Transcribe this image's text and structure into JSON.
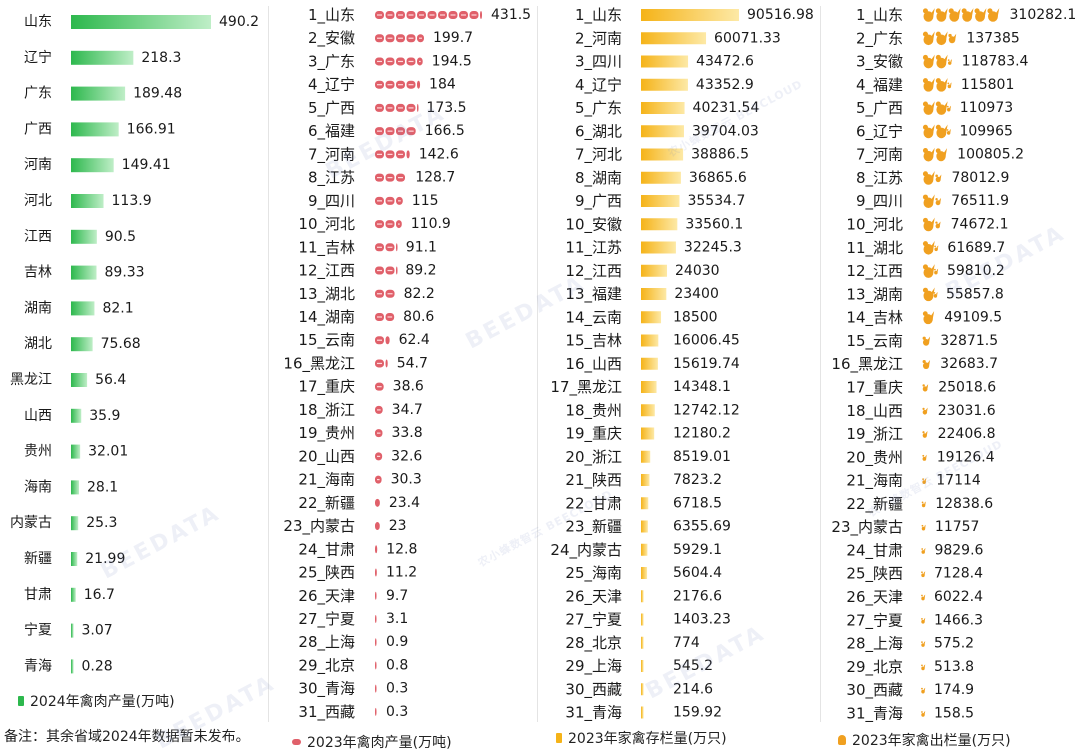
{
  "chart_data": [
    {
      "type": "bar",
      "orientation": "horizontal",
      "legend": "2024年禽肉产量(万吨)",
      "legend_position": "bottom-left",
      "color": "#2db84d",
      "categories": [
        "山东",
        "辽宁",
        "广东",
        "广西",
        "河南",
        "河北",
        "江西",
        "吉林",
        "湖南",
        "湖北",
        "黑龙江",
        "山西",
        "贵州",
        "海南",
        "内蒙古",
        "新疆",
        "甘肃",
        "宁夏",
        "青海"
      ],
      "values": [
        490.2,
        218.3,
        189.48,
        166.91,
        149.41,
        113.9,
        90.5,
        89.33,
        82.1,
        75.68,
        56.4,
        35.9,
        32.01,
        28.1,
        25.3,
        21.99,
        16.7,
        3.07,
        0.28
      ],
      "value_labels": [
        "490.2",
        "218.3",
        "189.48",
        "166.91",
        "149.41",
        "113.9",
        "90.5",
        "89.33",
        "82.1",
        "75.68",
        "56.4",
        "35.9",
        "32.01",
        "28.1",
        "25.3",
        "21.99",
        "16.7",
        "3.07",
        "0.28"
      ]
    },
    {
      "type": "bar",
      "orientation": "horizontal",
      "style": "pictograph-meat",
      "legend": "2023年禽肉产量(万吨)",
      "legend_position": "bottom",
      "color": "#e0606a",
      "categories": [
        "1_山东",
        "2_安徽",
        "3_广东",
        "4_辽宁",
        "5_广西",
        "6_福建",
        "7_河南",
        "8_江苏",
        "9_四川",
        "10_河北",
        "11_吉林",
        "12_江西",
        "13_湖北",
        "14_湖南",
        "15_云南",
        "16_黑龙江",
        "17_重庆",
        "18_浙江",
        "19_贵州",
        "20_山西",
        "21_海南",
        "22_新疆",
        "23_内蒙古",
        "24_甘肃",
        "25_陕西",
        "26_天津",
        "27_宁夏",
        "28_上海",
        "29_北京",
        "30_青海",
        "31_西藏"
      ],
      "values": [
        431.5,
        199.7,
        194.5,
        184,
        173.5,
        166.5,
        142.6,
        128.7,
        115,
        110.9,
        91.1,
        89.2,
        82.2,
        80.6,
        62.4,
        54.7,
        38.6,
        34.7,
        33.8,
        32.6,
        30.3,
        23.4,
        23,
        12.8,
        11.2,
        9.7,
        3.1,
        0.9,
        0.8,
        0.3,
        0.3
      ],
      "value_labels": [
        "431.5",
        "199.7",
        "194.5",
        "184",
        "173.5",
        "166.5",
        "142.6",
        "128.7",
        "115",
        "110.9",
        "91.1",
        "89.2",
        "82.2",
        "80.6",
        "62.4",
        "54.7",
        "38.6",
        "34.7",
        "33.8",
        "32.6",
        "30.3",
        "23.4",
        "23",
        "12.8",
        "11.2",
        "9.7",
        "3.1",
        "0.9",
        "0.8",
        "0.3",
        "0.3"
      ]
    },
    {
      "type": "bar",
      "orientation": "horizontal",
      "legend": "2023年家禽存栏量(万只)",
      "legend_position": "bottom",
      "color": "#f5b318",
      "categories": [
        "1_山东",
        "2_河南",
        "3_四川",
        "4_辽宁",
        "5_广东",
        "6_湖北",
        "7_河北",
        "8_湖南",
        "9_广西",
        "10_安徽",
        "11_江苏",
        "12_江西",
        "13_福建",
        "14_云南",
        "15_吉林",
        "16_山西",
        "17_黑龙江",
        "18_贵州",
        "19_重庆",
        "20_浙江",
        "21_陕西",
        "22_甘肃",
        "23_新疆",
        "24_内蒙古",
        "25_海南",
        "26_天津",
        "27_宁夏",
        "28_北京",
        "29_上海",
        "30_西藏",
        "31_青海"
      ],
      "values": [
        90516.98,
        60071.33,
        43472.6,
        43352.9,
        40231.54,
        39704.03,
        38886.5,
        36865.6,
        35534.7,
        33560.1,
        32245.3,
        24030,
        23400,
        18500,
        16006.45,
        15619.74,
        14348.1,
        12742.12,
        12180.2,
        8519.01,
        7823.2,
        6718.5,
        6355.69,
        5929.1,
        5604.4,
        2176.6,
        1403.23,
        774,
        545.2,
        214.6,
        159.92
      ],
      "value_labels": [
        "90516.98",
        "60071.33",
        "43472.6",
        "43352.9",
        "40231.54",
        "39704.03",
        "38886.5",
        "36865.6",
        "35534.7",
        "33560.1",
        "32245.3",
        "24030",
        "23400",
        "18500",
        "16006.45",
        "15619.74",
        "14348.1",
        "12742.12",
        "12180.2",
        "8519.01",
        "7823.2",
        "6718.5",
        "6355.69",
        "5929.1",
        "5604.4",
        "2176.6",
        "1403.23",
        "774",
        "545.2",
        "214.6",
        "159.92"
      ]
    },
    {
      "type": "bar",
      "orientation": "horizontal",
      "style": "pictograph-chicken",
      "legend": "2023年家禽出栏量(万只)",
      "legend_position": "bottom",
      "color": "#f0a020",
      "categories": [
        "1_山东",
        "2_广东",
        "3_安徽",
        "4_福建",
        "5_广西",
        "6_辽宁",
        "7_河南",
        "8_江苏",
        "9_四川",
        "10_河北",
        "11_湖北",
        "12_江西",
        "13_湖南",
        "14_吉林",
        "15_云南",
        "16_黑龙江",
        "17_重庆",
        "18_山西",
        "19_浙江",
        "20_贵州",
        "21_海南",
        "22_新疆",
        "23_内蒙古",
        "24_甘肃",
        "25_陕西",
        "26_天津",
        "27_宁夏",
        "28_上海",
        "29_北京",
        "30_西藏",
        "31_青海"
      ],
      "values": [
        310282.1,
        137385,
        118783.4,
        115801,
        110973,
        109965,
        100805.2,
        78012.9,
        76511.9,
        74672.1,
        61689.7,
        59810.2,
        55857.8,
        49109.5,
        32871.5,
        32683.7,
        25018.6,
        23031.6,
        22406.8,
        19126.4,
        17114,
        12838.6,
        11757,
        9829.6,
        7128.4,
        6022.4,
        1466.3,
        575.2,
        513.8,
        174.9,
        158.5
      ],
      "value_labels": [
        "310282.1",
        "137385",
        "118783.4",
        "115801",
        "110973",
        "109965",
        "100805.2",
        "78012.9",
        "76511.9",
        "74672.1",
        "61689.7",
        "59810.2",
        "55857.8",
        "49109.5",
        "32871.5",
        "32683.7",
        "25018.6",
        "23031.6",
        "22406.8",
        "19126.4",
        "17114",
        "12838.6",
        "11757",
        "9829.6",
        "7128.4",
        "6022.4",
        "1466.3",
        "575.2",
        "513.8",
        "174.9",
        "158.5"
      ]
    }
  ],
  "note": "备注：其余省域2024年数据暂未发布。",
  "watermark": "BEEDATA",
  "watermark_sub": "农小蜂数智云 BEECLOUD"
}
